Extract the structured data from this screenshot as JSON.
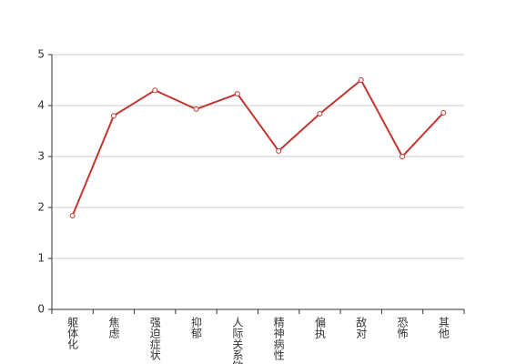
{
  "chart_data": {
    "type": "line",
    "categories": [
      "躯体化",
      "焦虑",
      "强迫症状",
      "抑郁",
      "人际关系敏感",
      "精神病性",
      "偏执",
      "敌对",
      "恐怖",
      "其他"
    ],
    "values": [
      1.84,
      3.8,
      4.3,
      3.93,
      4.23,
      3.11,
      3.84,
      4.5,
      3.0,
      3.86
    ],
    "color": "#c23531",
    "ylim": [
      0,
      5
    ],
    "yticks": [
      0,
      1,
      2,
      3,
      4,
      5
    ],
    "grid": true
  }
}
